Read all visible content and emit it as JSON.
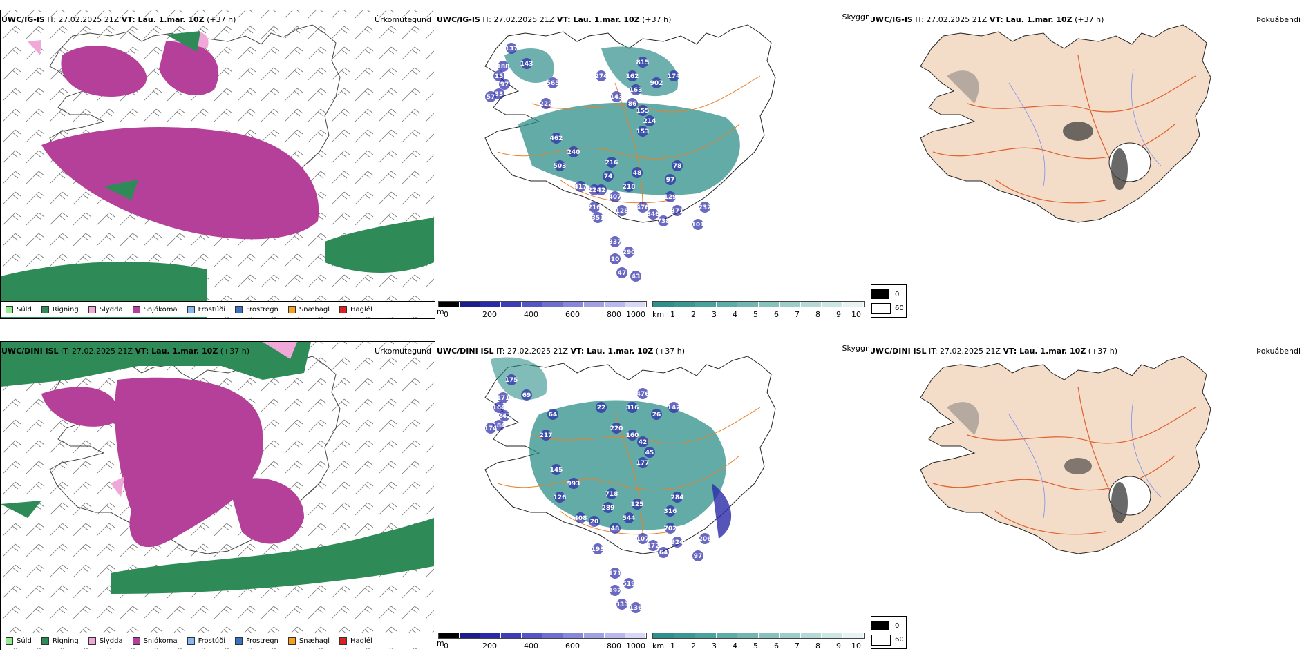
{
  "rows": [
    {
      "model": "UWC/IG-IS",
      "it_label": "IT: 27.02.2025 21Z",
      "vt_label": "VT: Lau. 1.mar. 10Z",
      "lead": "(+37 h)",
      "elev_labels": [
        "137",
        "143",
        "188",
        "565",
        "15",
        "97",
        "33",
        "57",
        "222",
        "462",
        "240",
        "503",
        "74",
        "216",
        "48",
        "97",
        "78",
        "417",
        "221",
        "407",
        "218",
        "129",
        "371",
        "232",
        "738",
        "101",
        "351",
        "476",
        "846",
        "337",
        "290",
        "10",
        "47",
        "43",
        "815",
        "162",
        "902",
        "174",
        "143",
        "86",
        "155",
        "214",
        "153",
        "274",
        "163",
        "42",
        "128",
        "216"
      ]
    },
    {
      "model": "UWC/DINI ISL",
      "it_label": "IT: 27.02.2025 21Z",
      "vt_label": "VT: Lau. 1.mar. 10Z",
      "lead": "(+37 h)",
      "elev_labels": [
        "175",
        "69",
        "171",
        "64",
        "164",
        "242",
        "184",
        "174",
        "217",
        "145",
        "993",
        "126",
        "289",
        "718",
        "125",
        "316",
        "284",
        "408",
        "20",
        "48",
        "544",
        "702",
        "924",
        "206",
        "64",
        "97",
        "193",
        "107",
        "172",
        "171",
        "519",
        "192",
        "333",
        "136",
        "476",
        "316",
        "26",
        "142",
        "220",
        "160",
        "42",
        "45",
        "177",
        "22"
      ]
    }
  ],
  "precip_panel": {
    "title": "Úrkomutegund",
    "legend": [
      {
        "label": "Súld",
        "color": "#90ee90"
      },
      {
        "label": "Rigning",
        "color": "#2e8b57"
      },
      {
        "label": "Slydda",
        "color": "#f0a8d8"
      },
      {
        "label": "Snjókoma",
        "color": "#b5409a"
      },
      {
        "label": "Frostúði",
        "color": "#87b8ee"
      },
      {
        "label": "Frostregn",
        "color": "#3a70c8"
      },
      {
        "label": "Snæhagl",
        "color": "#f5a020"
      },
      {
        "label": "Haglél",
        "color": "#e02020"
      }
    ]
  },
  "cloud_panel": {
    "title": "Skyggni",
    "elev_unit": "m",
    "elev_ticks": [
      "0",
      "200",
      "400",
      "600",
      "800",
      "1000"
    ],
    "vis_unit": "km",
    "vis_ticks": [
      "1",
      "2",
      "3",
      "4",
      "5",
      "6",
      "7",
      "8",
      "9",
      "10"
    ]
  },
  "fog_panel": {
    "title": "Þokuábendi",
    "legend": [
      "0",
      "60"
    ]
  },
  "colors": {
    "rain": "#2e8b57",
    "snow": "#b5409a",
    "sleet": "#f0a8d8",
    "vis": "#2f8f8a",
    "elev": "#2a2aa8",
    "land": "#f4ddc8",
    "road": "#e8703a",
    "river": "#7a8ef0"
  }
}
